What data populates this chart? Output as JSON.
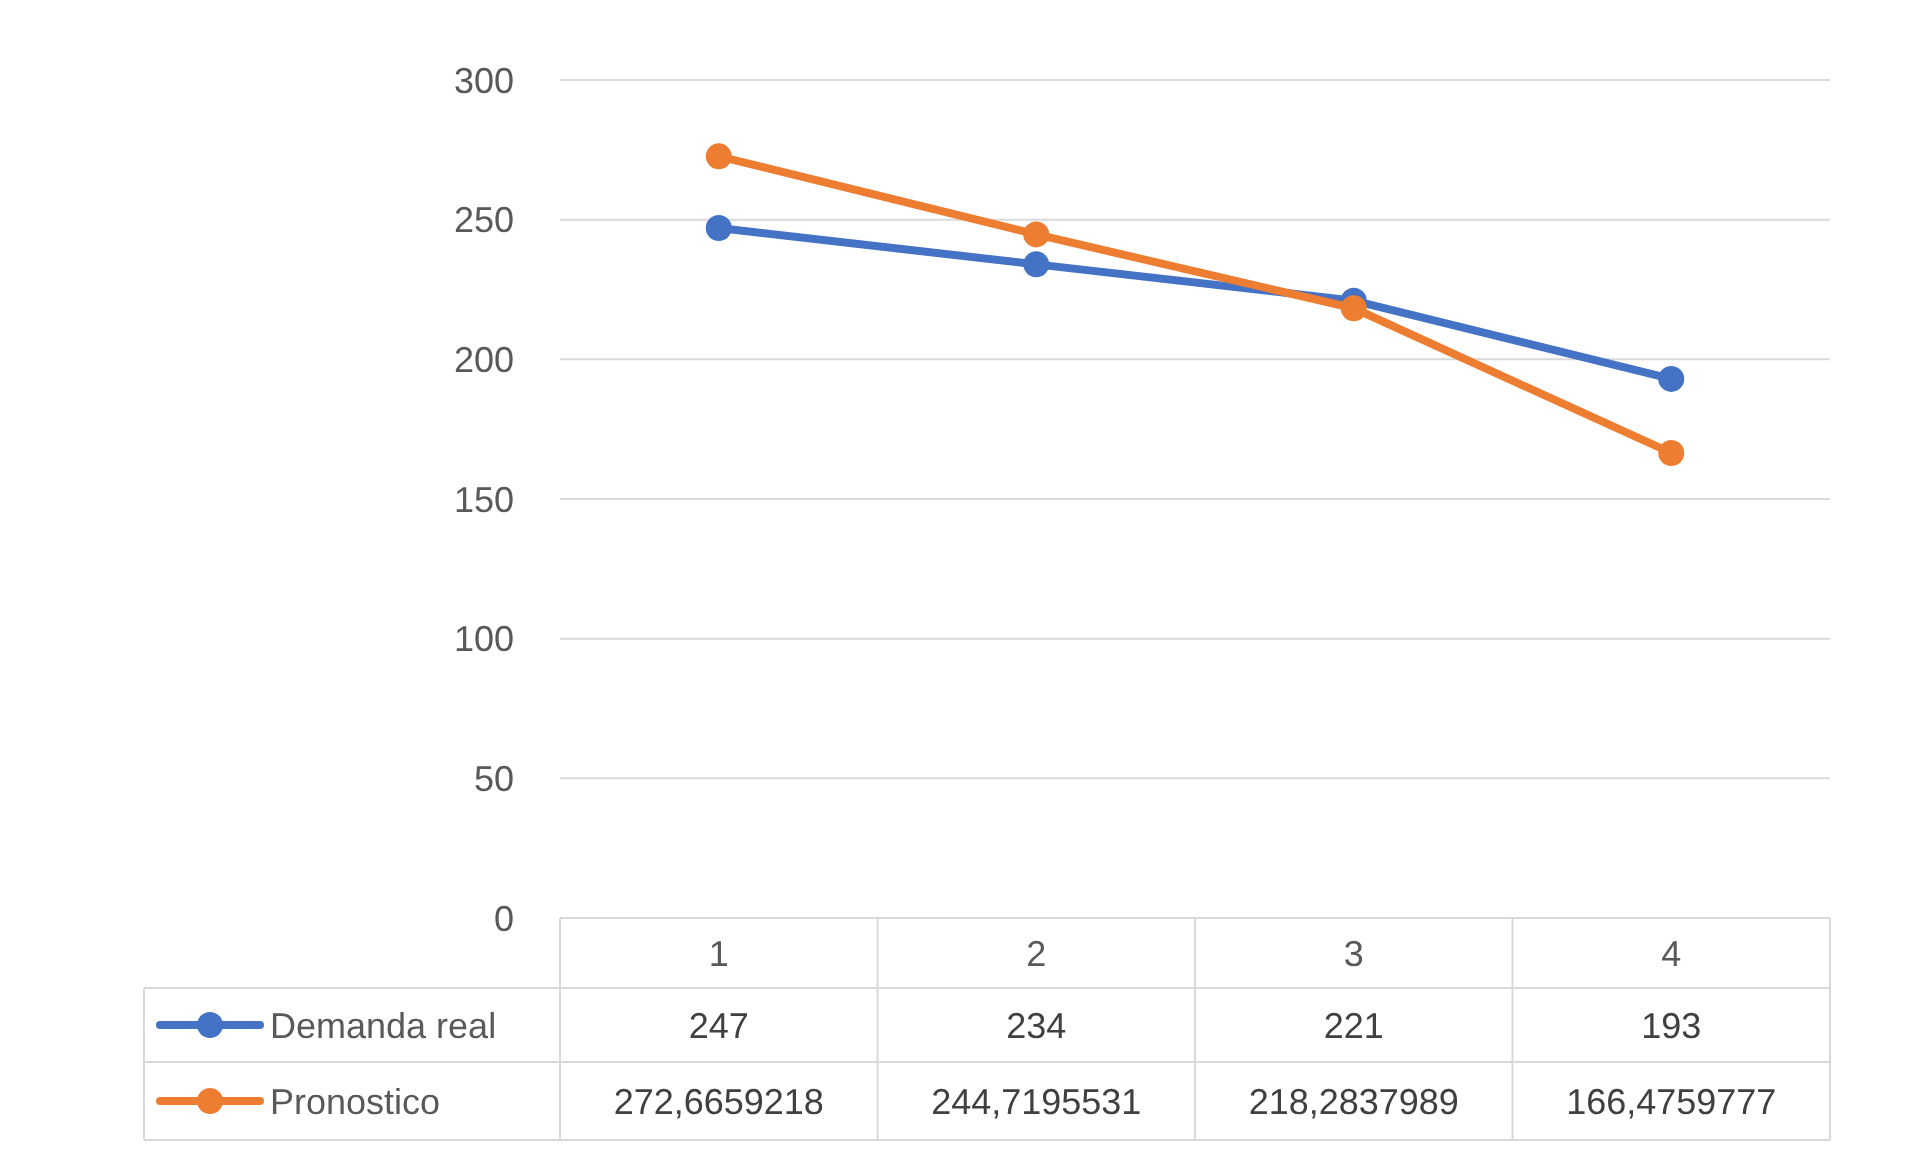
{
  "chart_data": {
    "type": "line",
    "categories": [
      "1",
      "2",
      "3",
      "4"
    ],
    "series": [
      {
        "name": "Demanda real",
        "color": "#4472c4",
        "values": [
          247,
          234,
          221,
          193
        ],
        "value_labels": [
          "247",
          "234",
          "221",
          "193"
        ]
      },
      {
        "name": "Pronostico",
        "color": "#ed7d31",
        "values": [
          272.6659218,
          244.7195531,
          218.2837989,
          166.4759777
        ],
        "value_labels": [
          "272,6659218",
          "244,7195531",
          "218,2837989",
          "166,4759777"
        ]
      }
    ],
    "ylim": [
      0,
      300
    ],
    "yticks": [
      0,
      50,
      100,
      150,
      200,
      250,
      300
    ],
    "grid": "y",
    "legend": "bottom",
    "marker": "circle",
    "line_style": "solid"
  }
}
